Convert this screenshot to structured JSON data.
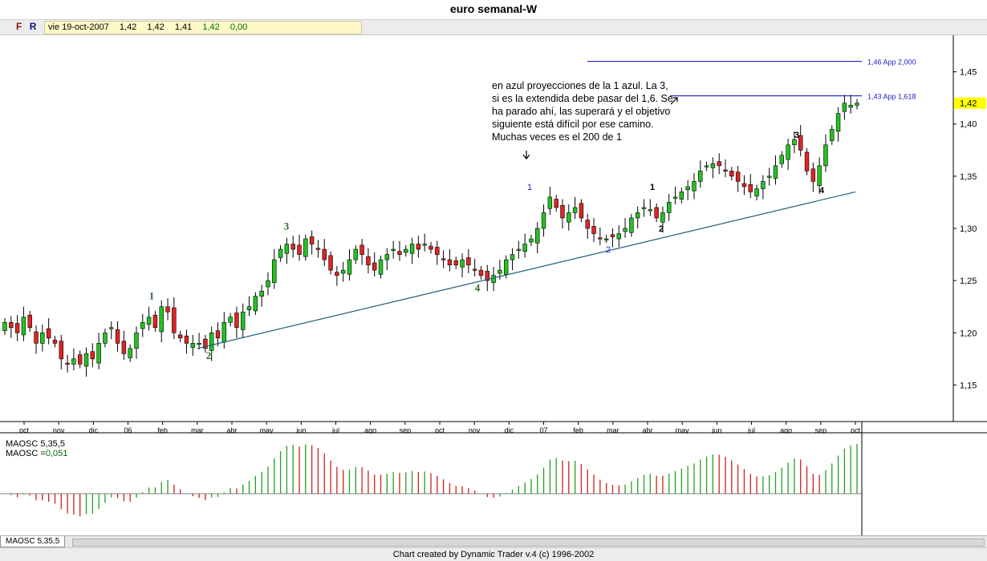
{
  "window": {
    "title": "euro semanal-W"
  },
  "toolbar": {
    "f_label": "F",
    "r_label": "R"
  },
  "quote": {
    "date": "vie 19-oct-2007",
    "open": "1,42",
    "high": "1,42",
    "low": "1,41",
    "close": "1,42",
    "change": "0,00"
  },
  "annotation_note": "en azul proyecciones de la 1 azul. La 3, si es la extendida debe pasar del 1,6. Se ha parado ahí, las superará y el objetivo siguiente está difícil por ese camino. Muchas veces es el 200 de 1",
  "oscillator": {
    "title": "MAOSC 5,35,5",
    "value_label": "MAOSC =",
    "value": "0,051",
    "tab_label": "MAOSC 5,35,5"
  },
  "footer": "Chart created by Dynamic Trader v.4  (c) 1996-2002",
  "colors": {
    "up": "#22c322",
    "down": "#e02424",
    "trendline": "#1f5f7a",
    "projection": "#2020c8",
    "wave_green": "#2a6a2a",
    "osc_up": "#23a023",
    "osc_down": "#d02020",
    "current_price_bg": "#ffff00"
  },
  "chart_data": {
    "type": "candlestick",
    "title": "euro semanal-W",
    "timeframe": "weekly",
    "y_ticks": [
      "1,45",
      "1,40",
      "1,35",
      "1,30",
      "1,25",
      "1,20",
      "1,15"
    ],
    "ylim": [
      1.115,
      1.485
    ],
    "x_tick_labels": [
      "oct",
      "nov",
      "dic",
      "06",
      "feb",
      "mar",
      "abr",
      "may",
      "jun",
      "jul",
      "ago",
      "sep",
      "oct",
      "nov",
      "dic",
      "07",
      "feb",
      "mar",
      "abr",
      "may",
      "jun",
      "jul",
      "ago",
      "sep",
      "oct"
    ],
    "current_price": "1,42",
    "projections": [
      {
        "label": "1,46 App 2,000",
        "value": 1.46
      },
      {
        "label": "1,43 App 1,618",
        "value": 1.427
      }
    ],
    "trendline": {
      "from": {
        "x": "2006-03",
        "y": 1.185
      },
      "to": {
        "x": "2007-10",
        "y": 1.335
      }
    },
    "wave_labels": [
      {
        "text": "1",
        "price": 1.235,
        "color": "green"
      },
      {
        "text": "2",
        "price": 1.178,
        "color": "green"
      },
      {
        "text": "3",
        "price": 1.302,
        "color": "green"
      },
      {
        "text": "4",
        "price": 1.243,
        "color": "green"
      },
      {
        "text": "1",
        "price": 1.34,
        "color": "blue"
      },
      {
        "text": "2",
        "price": 1.28,
        "color": "blue"
      },
      {
        "text": "1",
        "price": 1.34,
        "color": "black"
      },
      {
        "text": "2",
        "price": 1.3,
        "color": "black"
      },
      {
        "text": "3",
        "price": 1.39,
        "color": "black"
      },
      {
        "text": "4",
        "price": 1.337,
        "color": "black"
      }
    ],
    "closes": [
      1.21,
      1.205,
      1.2,
      1.215,
      1.205,
      1.19,
      1.2,
      1.195,
      1.19,
      1.175,
      1.17,
      1.175,
      1.17,
      1.18,
      1.175,
      1.19,
      1.2,
      1.205,
      1.19,
      1.18,
      1.185,
      1.2,
      1.21,
      1.215,
      1.205,
      1.225,
      1.22,
      1.2,
      1.195,
      1.19,
      1.19,
      1.19,
      1.185,
      1.2,
      1.195,
      1.21,
      1.215,
      1.205,
      1.22,
      1.225,
      1.235,
      1.24,
      1.25,
      1.27,
      1.28,
      1.285,
      1.28,
      1.275,
      1.29,
      1.285,
      1.28,
      1.27,
      1.26,
      1.255,
      1.26,
      1.27,
      1.28,
      1.275,
      1.265,
      1.26,
      1.27,
      1.275,
      1.28,
      1.275,
      1.28,
      1.285,
      1.28,
      1.285,
      1.28,
      1.275,
      1.27,
      1.265,
      1.265,
      1.27,
      1.265,
      1.26,
      1.255,
      1.25,
      1.255,
      1.26,
      1.27,
      1.275,
      1.28,
      1.285,
      1.29,
      1.3,
      1.315,
      1.33,
      1.32,
      1.31,
      1.315,
      1.32,
      1.31,
      1.3,
      1.295,
      1.29,
      1.29,
      1.292,
      1.295,
      1.3,
      1.31,
      1.315,
      1.32,
      1.318,
      1.31,
      1.315,
      1.325,
      1.33,
      1.335,
      1.34,
      1.345,
      1.355,
      1.36,
      1.362,
      1.36,
      1.355,
      1.35,
      1.345,
      1.34,
      1.335,
      1.338,
      1.345,
      1.35,
      1.36,
      1.37,
      1.38,
      1.385,
      1.375,
      1.355,
      1.345,
      1.36,
      1.38,
      1.395,
      1.41,
      1.42,
      1.418,
      1.42
    ]
  }
}
